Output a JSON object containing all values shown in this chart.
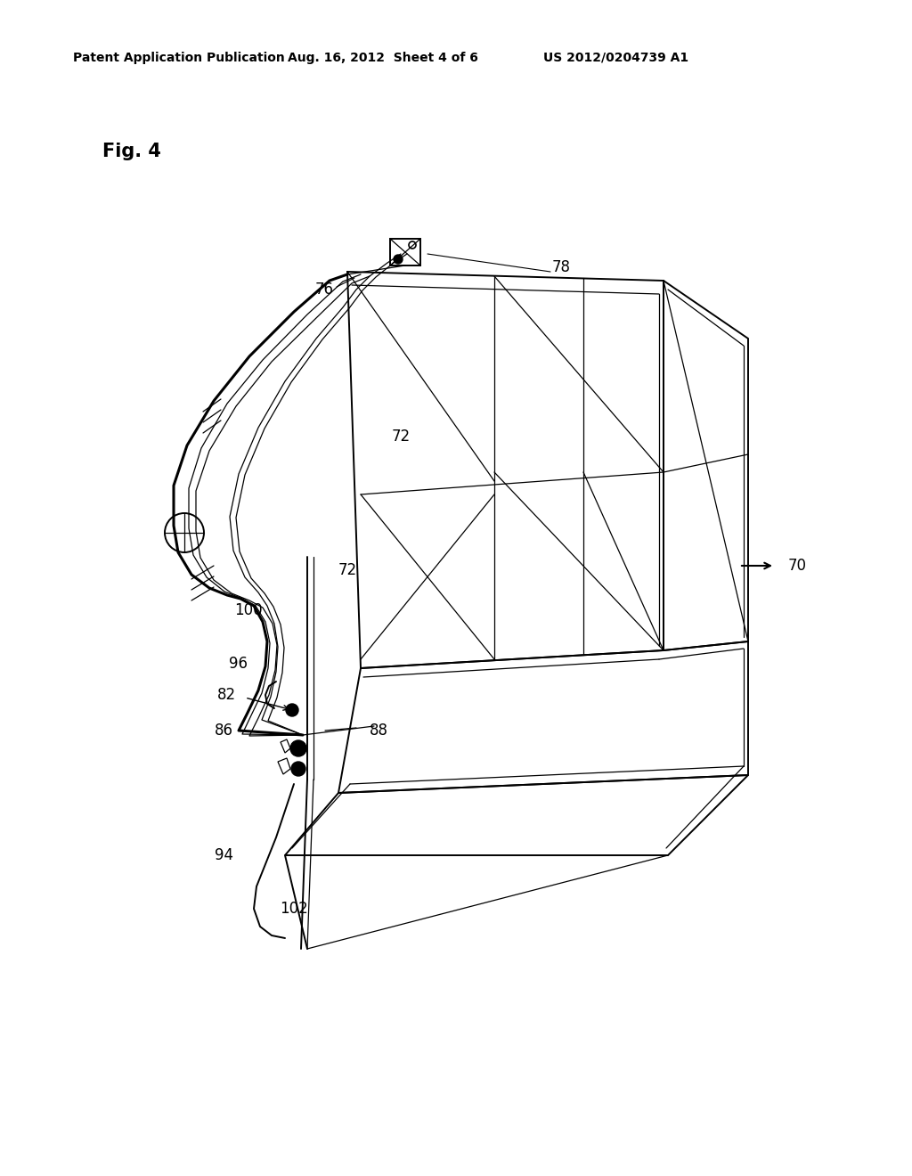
{
  "background_color": "#ffffff",
  "line_color": "#000000",
  "header_left": "Patent Application Publication",
  "header_center": "Aug. 16, 2012  Sheet 4 of 6",
  "header_right": "US 2012/0204739 A1",
  "fig_label": "Fig. 4",
  "lw_main": 1.4,
  "lw_thin": 0.9,
  "lw_thick": 2.2,
  "font_size_header": 10,
  "font_size_label": 12,
  "font_size_fig": 15
}
